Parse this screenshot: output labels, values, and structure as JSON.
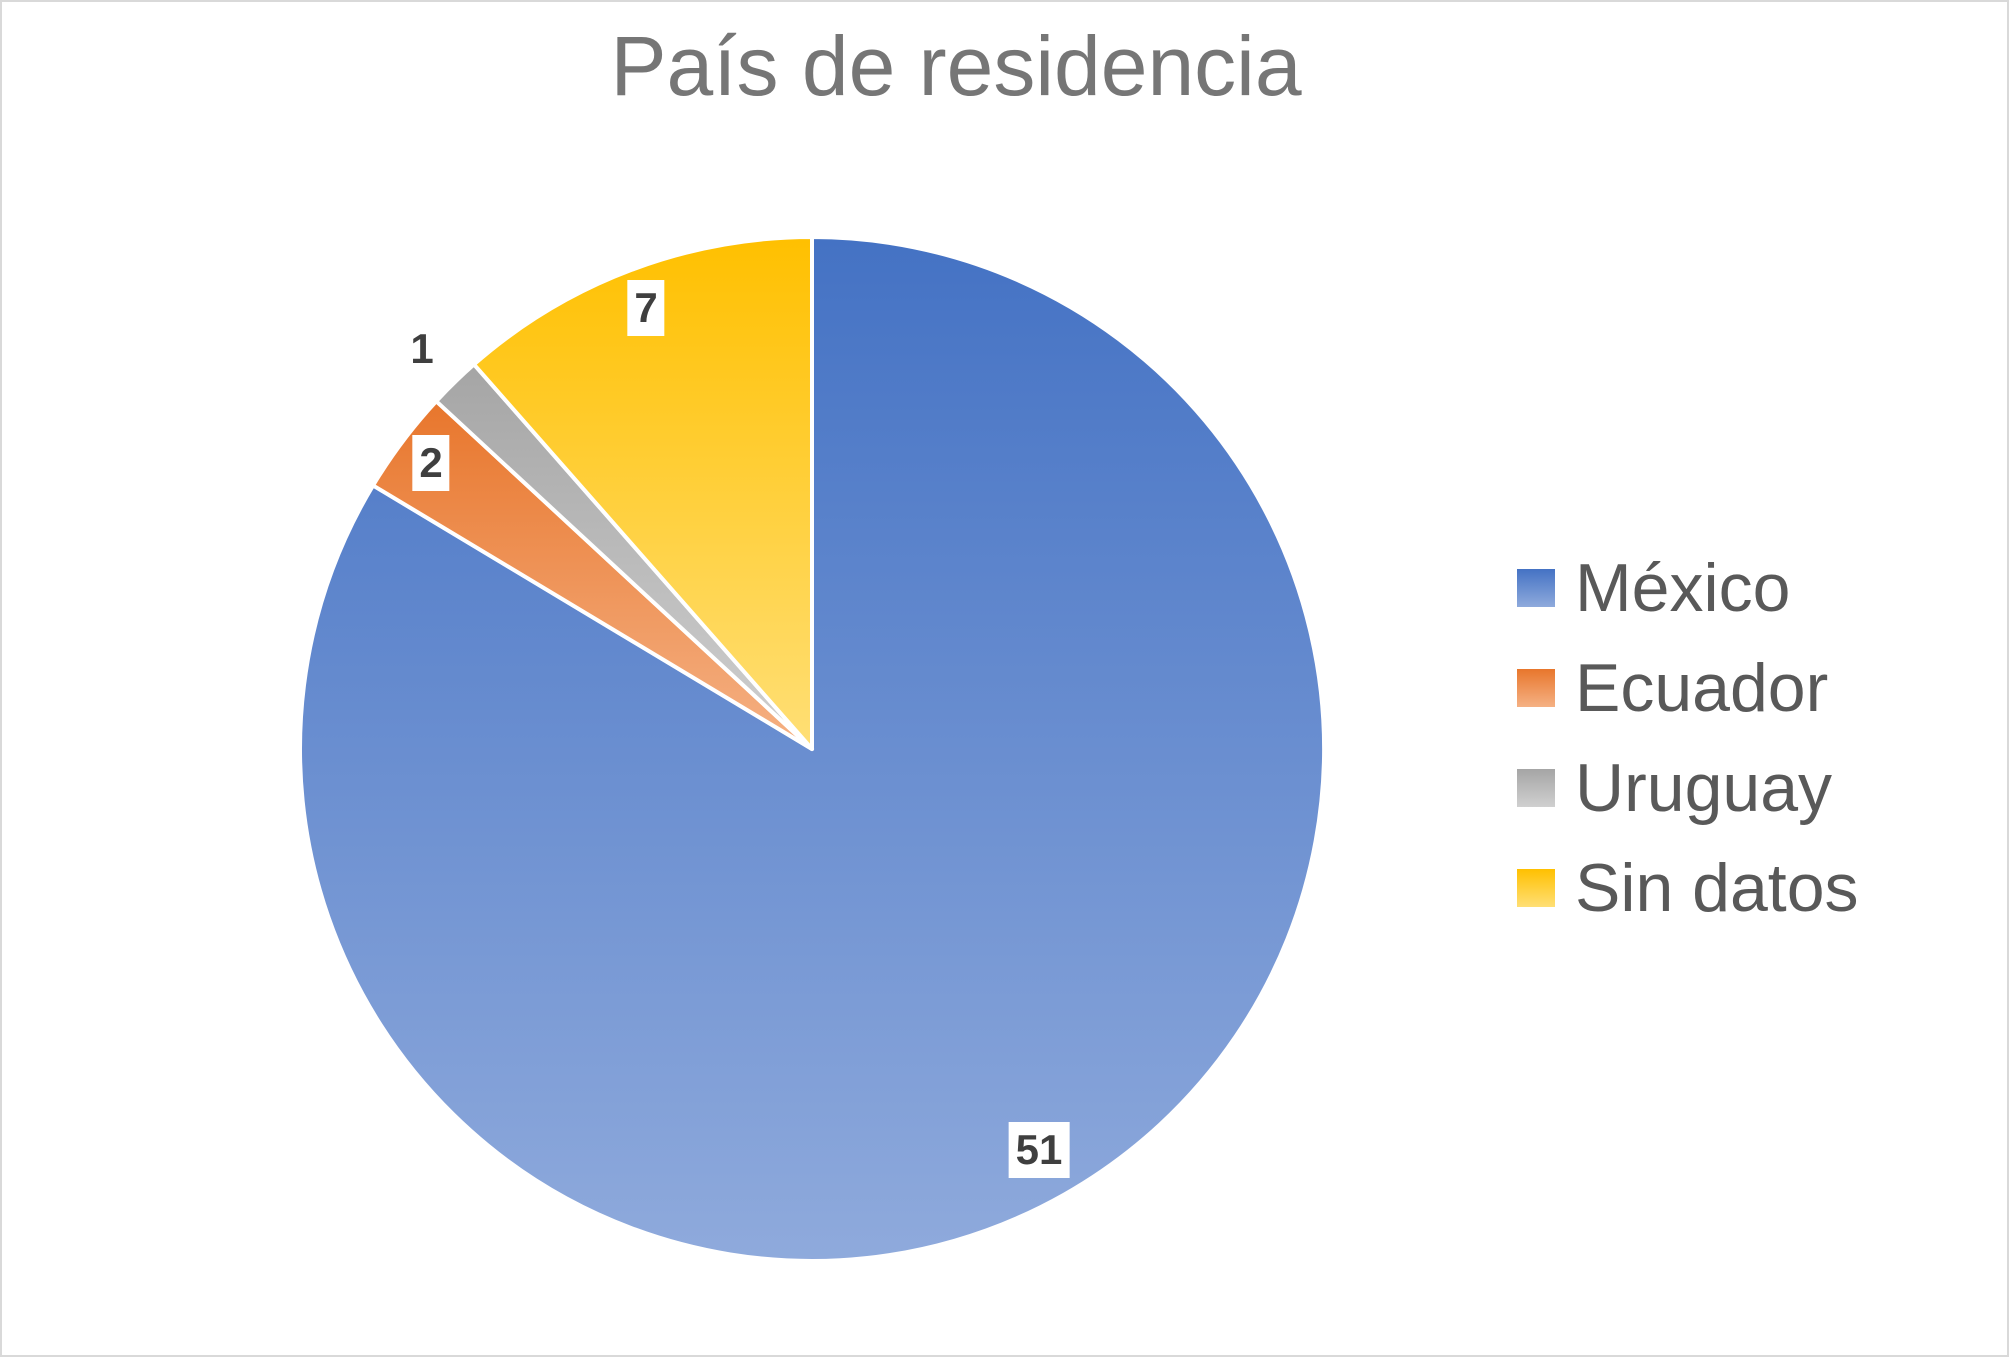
{
  "chart_data": {
    "type": "pie",
    "title": "País de residencia",
    "categories": [
      "México",
      "Ecuador",
      "Uruguay",
      "Sin datos"
    ],
    "values": [
      51,
      2,
      1,
      7
    ],
    "total": 61,
    "start_angle_deg": 0,
    "direction": "clockwise",
    "legend_position": "right",
    "slices": [
      {
        "id": "mexico",
        "label": "México",
        "value": 51,
        "data_label": "51",
        "color_top": "#4472C4",
        "color_bottom": "#8FAADC",
        "label_r": 0.9,
        "label_boxed": true
      },
      {
        "id": "ecuador",
        "label": "Ecuador",
        "value": 2,
        "data_label": "2",
        "color_top": "#E8762C",
        "color_bottom": "#F5B184",
        "label_r": 0.93,
        "label_boxed": true
      },
      {
        "id": "uruguay",
        "label": "Uruguay",
        "value": 1,
        "data_label": "1",
        "color_top": "#A5A5A5",
        "color_bottom": "#D0D0D0",
        "label_r": 1.09,
        "label_boxed": false
      },
      {
        "id": "sin-datos",
        "label": "Sin datos",
        "value": 7,
        "data_label": "7",
        "color_top": "#FFC000",
        "color_bottom": "#FFDF76",
        "label_r": 0.92,
        "label_boxed": true
      }
    ],
    "data_label_color": "#3F3F3F",
    "slice_border_color": "#FFFFFF",
    "title_color": "#767676",
    "legend_text_color": "#595959"
  }
}
